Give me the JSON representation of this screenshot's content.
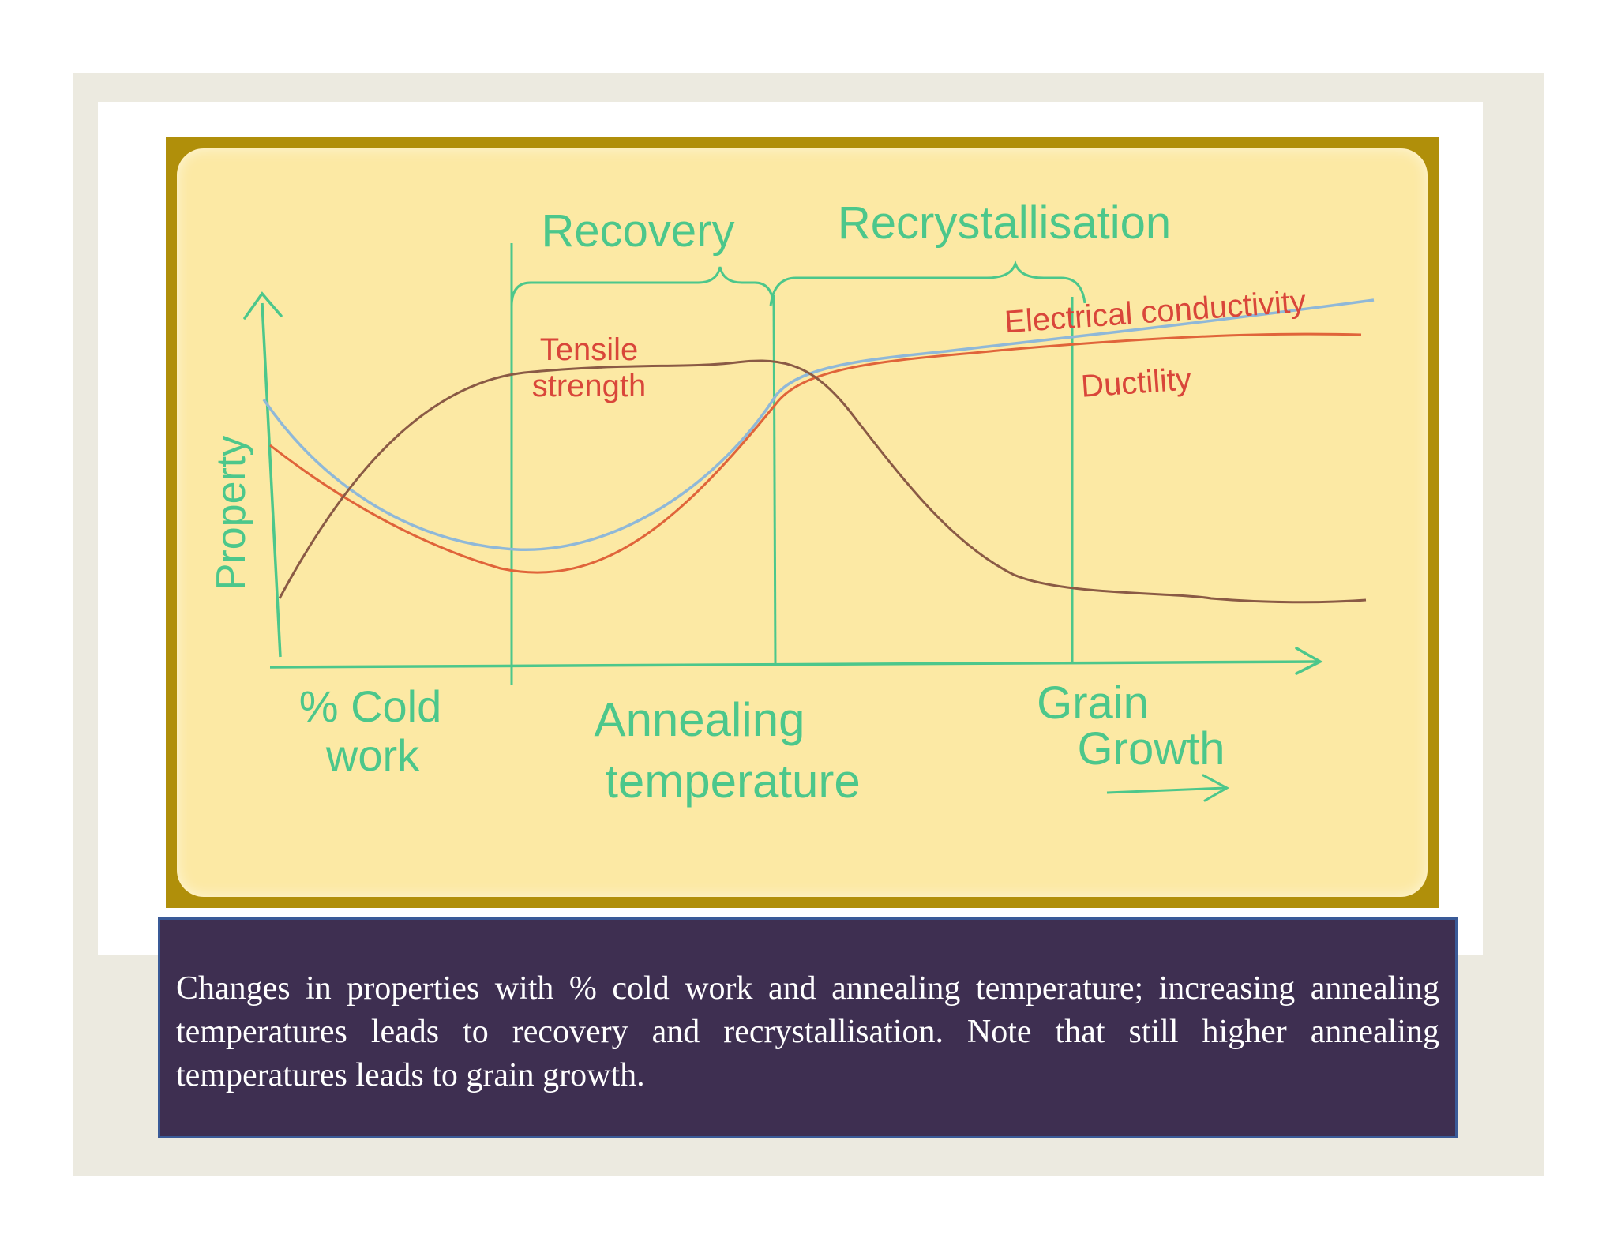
{
  "figure": {
    "title_recovery": "Recovery",
    "title_recrystallisation": "Recrystallisation",
    "y_axis_label": "Property",
    "label_cold_work_line1": "% Cold",
    "label_cold_work_line2": "work",
    "label_annealing_line1": "Annealing",
    "label_annealing_line2": "temperature",
    "label_grain_line1": "Grain",
    "label_grain_line2": "Growth",
    "curve_tensile_line1": "Tensile",
    "curve_tensile_line2": "strength",
    "curve_conductivity": "Electrical conductivity",
    "curve_ductility": "Ductility",
    "colors": {
      "frame": "#b08f0a",
      "background": "#fce9a4",
      "axes_and_labels": "#4cc78b",
      "tensile_strength": "#8a5a45",
      "electrical_conductivity": "#8fb8d8",
      "ductility": "#e0643a",
      "curve_labels": "#d9463a"
    }
  },
  "caption": {
    "text": "Changes in properties with % cold work and annealing temperature; increasing annealing temperatures leads to recovery and recrystallisation. Note that still higher annealing temperatures leads to grain growth."
  }
}
